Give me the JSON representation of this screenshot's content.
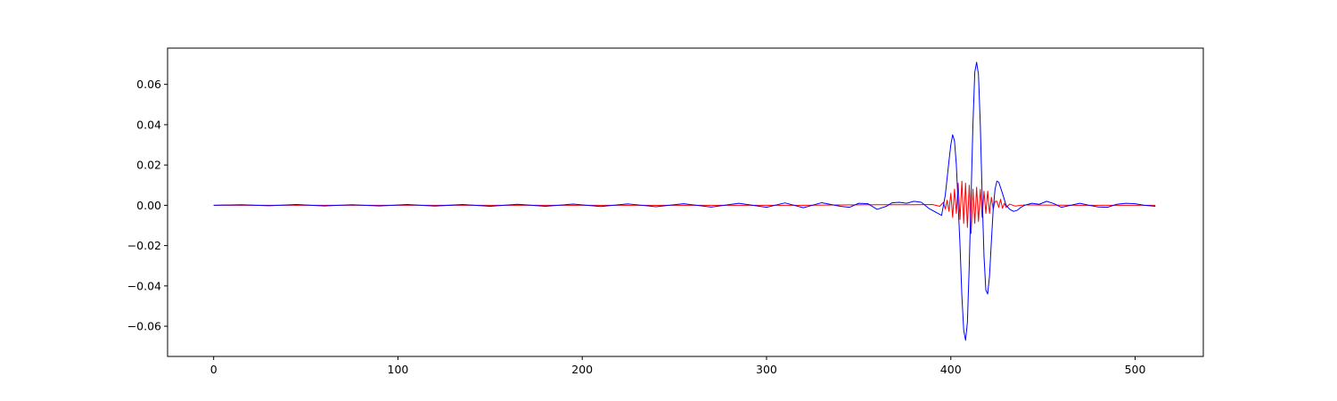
{
  "chart_data": {
    "type": "line",
    "title": "",
    "xlabel": "",
    "ylabel": "",
    "xlim": [
      -25,
      537
    ],
    "ylim": [
      -0.075,
      0.078
    ],
    "xticks": [
      0,
      100,
      200,
      300,
      400,
      500
    ],
    "xtick_labels": [
      "0",
      "100",
      "200",
      "300",
      "400",
      "500"
    ],
    "yticks": [
      -0.06,
      -0.04,
      -0.02,
      0.0,
      0.02,
      0.04,
      0.06
    ],
    "ytick_labels": [
      "−0.06",
      "−0.04",
      "−0.02",
      "0.00",
      "0.02",
      "0.04",
      "0.06"
    ],
    "grid": false,
    "legend": "none",
    "series": [
      {
        "color": "#ff0000",
        "x": [
          0,
          50,
          100,
          150,
          200,
          250,
          300,
          320,
          340,
          360,
          380,
          390,
          394,
          396,
          397,
          398,
          399,
          400,
          401,
          402,
          403,
          404,
          405,
          406,
          407,
          408,
          409,
          410,
          411,
          412,
          413,
          414,
          415,
          416,
          417,
          418,
          419,
          420,
          421,
          422,
          423,
          424,
          425,
          426,
          427,
          428,
          429,
          430,
          432,
          435,
          440,
          450,
          470,
          490,
          511
        ],
        "y": [
          0,
          0,
          0,
          0,
          0,
          0,
          0,
          0,
          0.0002,
          0.0003,
          0.0003,
          0.0004,
          -0.0005,
          0.0015,
          -0.0018,
          0.0025,
          -0.003,
          0.006,
          -0.006,
          0.008,
          -0.004,
          0.011,
          -0.007,
          0.012,
          -0.009,
          0.011,
          -0.011,
          0.01,
          -0.014,
          0.008,
          -0.009,
          0.009,
          -0.008,
          0.008,
          -0.006,
          0.007,
          -0.004,
          0.007,
          -0.004,
          0.004,
          -0.002,
          0.002,
          0.002,
          -0.001,
          0.003,
          -0.0015,
          0.001,
          -0.001,
          0.0006,
          -0.0004,
          0.0002,
          0.0001,
          0,
          0,
          0
        ]
      },
      {
        "color": "#0000ff",
        "x": [
          0,
          15,
          30,
          45,
          60,
          75,
          90,
          105,
          120,
          135,
          150,
          165,
          180,
          195,
          210,
          225,
          240,
          255,
          270,
          285,
          300,
          310,
          320,
          330,
          340,
          345,
          350,
          355,
          360,
          365,
          368,
          372,
          376,
          380,
          384,
          388,
          392,
          395,
          397,
          399,
          400,
          401,
          402,
          403,
          404,
          405,
          406,
          407,
          408,
          409,
          410,
          411,
          412,
          413,
          414,
          415,
          416,
          417,
          418,
          419,
          420,
          421,
          422,
          423,
          424,
          425,
          426,
          428,
          430,
          432,
          434,
          436,
          438,
          440,
          444,
          448,
          452,
          456,
          460,
          465,
          470,
          475,
          480,
          485,
          490,
          495,
          500,
          505,
          511
        ],
        "y": [
          0,
          0.0003,
          -0.0002,
          0.0004,
          -0.0003,
          0.0003,
          -0.0003,
          0.0004,
          -0.0004,
          0.0004,
          -0.0005,
          0.0005,
          -0.0005,
          0.0006,
          -0.0006,
          0.0007,
          -0.0007,
          0.0008,
          -0.0009,
          0.001,
          -0.001,
          0.0012,
          -0.0012,
          0.0013,
          -0.0005,
          -0.001,
          0.001,
          0.0008,
          -0.002,
          -0.0005,
          0.0012,
          0.0015,
          0.001,
          0.002,
          0.0015,
          -0.0015,
          -0.0035,
          -0.005,
          0.005,
          0.022,
          0.03,
          0.035,
          0.032,
          0.02,
          0.0,
          -0.02,
          -0.045,
          -0.062,
          -0.067,
          -0.058,
          -0.03,
          0.005,
          0.04,
          0.066,
          0.071,
          0.065,
          0.04,
          0.005,
          -0.025,
          -0.042,
          -0.044,
          -0.035,
          -0.018,
          -0.002,
          0.008,
          0.012,
          0.0115,
          0.006,
          0.0,
          -0.002,
          -0.003,
          -0.0025,
          -0.001,
          0.0,
          0.001,
          0.0005,
          0.002,
          0.0008,
          -0.001,
          0.0,
          0.001,
          0.0,
          -0.0008,
          -0.001,
          0.0005,
          0.001,
          0.0008,
          0.0,
          -0.0005
        ]
      }
    ]
  }
}
